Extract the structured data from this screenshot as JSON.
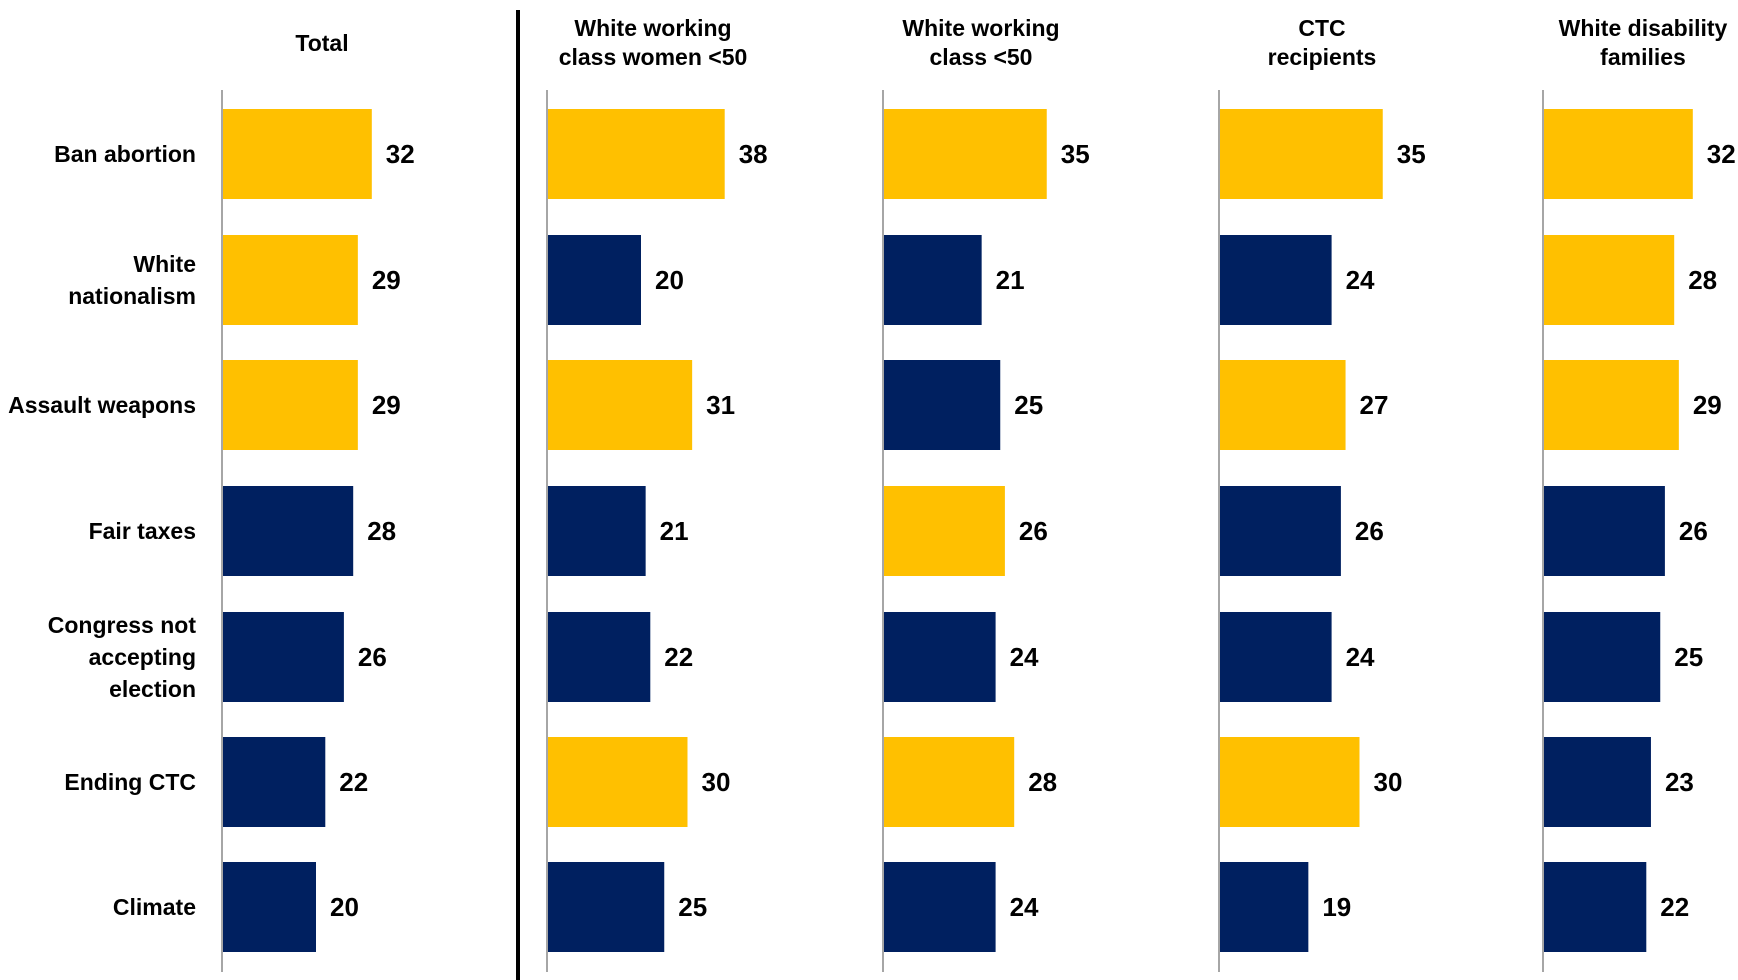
{
  "chart_data": {
    "type": "bar",
    "orientation": "horizontal",
    "categories": [
      "Ban abortion",
      "White nationalism",
      "Assault weapons",
      "Fair taxes",
      "Congress not accepting election",
      "Ending CTC",
      "Climate"
    ],
    "category_lines": [
      [
        "Ban abortion"
      ],
      [
        "White",
        "nationalism"
      ],
      [
        "Assault weapons"
      ],
      [
        "Fair taxes"
      ],
      [
        "Congress not",
        "accepting",
        "election"
      ],
      [
        "Ending CTC"
      ],
      [
        "Climate"
      ]
    ],
    "colors": {
      "highlight": "#FFC000",
      "base": "#002060"
    },
    "series": [
      {
        "name": "Total",
        "name_lines": [
          "Total"
        ],
        "values": [
          32,
          29,
          29,
          28,
          26,
          22,
          20
        ],
        "highlight": [
          true,
          true,
          true,
          false,
          false,
          false,
          false
        ]
      },
      {
        "name": "White working class women <50",
        "name_lines": [
          "White working",
          "class women <50"
        ],
        "values": [
          38,
          20,
          31,
          21,
          22,
          30,
          25
        ],
        "highlight": [
          true,
          false,
          true,
          false,
          false,
          true,
          false
        ]
      },
      {
        "name": "White working class <50",
        "name_lines": [
          "White working",
          "class <50"
        ],
        "values": [
          35,
          21,
          25,
          26,
          24,
          28,
          24
        ],
        "highlight": [
          true,
          false,
          false,
          true,
          false,
          true,
          false
        ]
      },
      {
        "name": "CTC recipients",
        "name_lines": [
          "CTC",
          "recipients"
        ],
        "values": [
          35,
          24,
          27,
          26,
          24,
          30,
          19
        ],
        "highlight": [
          true,
          false,
          true,
          false,
          false,
          true,
          false
        ]
      },
      {
        "name": "White disability families",
        "name_lines": [
          "White disability",
          "families"
        ],
        "values": [
          32,
          28,
          29,
          26,
          25,
          23,
          22
        ],
        "highlight": [
          true,
          true,
          true,
          false,
          false,
          false,
          false
        ]
      }
    ],
    "data_labels": true,
    "grid": false,
    "legend": "none"
  }
}
